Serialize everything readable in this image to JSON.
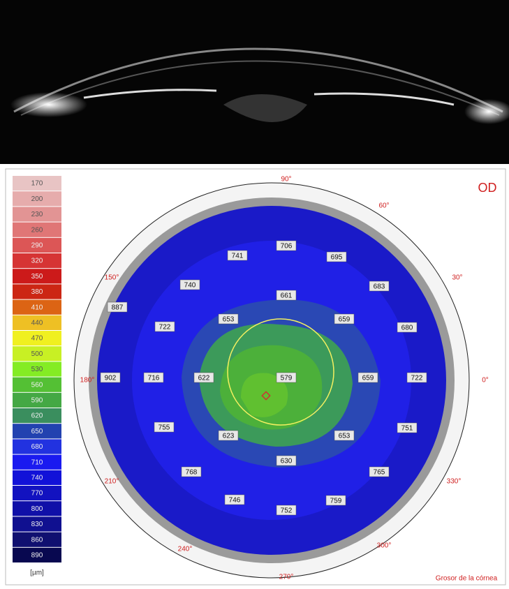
{
  "eye": "OD",
  "footer": "Grosor de la córnea",
  "scale": {
    "unit": "[µm]",
    "entries": [
      {
        "label": "170",
        "color": "#e8c4c4"
      },
      {
        "label": "200",
        "color": "#e6acac"
      },
      {
        "label": "230",
        "color": "#e29494"
      },
      {
        "label": "260",
        "color": "#e07676"
      },
      {
        "label": "290",
        "color": "#dc5656"
      },
      {
        "label": "320",
        "color": "#d63434"
      },
      {
        "label": "350",
        "color": "#cc1a1a"
      },
      {
        "label": "380",
        "color": "#cc2614"
      },
      {
        "label": "410",
        "color": "#dc6414"
      },
      {
        "label": "440",
        "color": "#eec024"
      },
      {
        "label": "470",
        "color": "#f0f020"
      },
      {
        "label": "500",
        "color": "#c8f024"
      },
      {
        "label": "530",
        "color": "#84ec24"
      },
      {
        "label": "560",
        "color": "#54c034"
      },
      {
        "label": "590",
        "color": "#44a844"
      },
      {
        "label": "620",
        "color": "#3a8e5e"
      },
      {
        "label": "650",
        "color": "#2242b0"
      },
      {
        "label": "680",
        "color": "#2232e0"
      },
      {
        "label": "710",
        "color": "#1a1af0"
      },
      {
        "label": "740",
        "color": "#1212d8"
      },
      {
        "label": "770",
        "color": "#1212c0"
      },
      {
        "label": "800",
        "color": "#1010a8"
      },
      {
        "label": "830",
        "color": "#101090"
      },
      {
        "label": "860",
        "color": "#101070"
      },
      {
        "label": "890",
        "color": "#080850"
      }
    ]
  },
  "degrees": [
    "90°",
    "60°",
    "30°",
    "0°",
    "330°",
    "300°",
    "270°",
    "240°",
    "210°",
    "180°",
    "150°"
  ],
  "thickness_labels": [
    "741",
    "706",
    "695",
    "740",
    "661",
    "683",
    "887",
    "653",
    "659",
    "722",
    "680",
    "902",
    "716",
    "622",
    "579",
    "659",
    "722",
    "755",
    "623",
    "653",
    "751",
    "630",
    "768",
    "765",
    "746",
    "759",
    "752"
  ]
}
